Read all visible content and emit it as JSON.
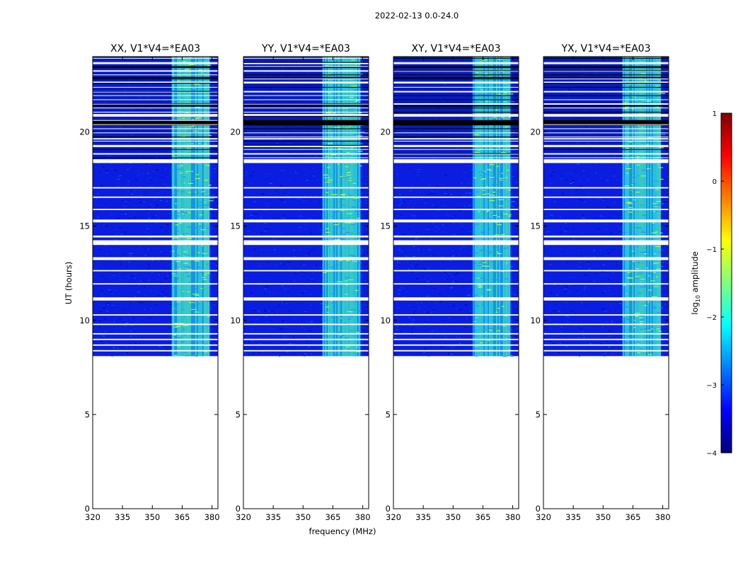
{
  "chart_data": {
    "type": "heatmap",
    "suptitle": "2022-02-13 0.0-24.0",
    "xlabel": "frequency (MHz)",
    "ylabel": "UT (hours)",
    "xlim": [
      320,
      383
    ],
    "ylim": [
      0,
      24
    ],
    "xticks": [
      320,
      335,
      350,
      365,
      380
    ],
    "yticks": [
      0,
      5,
      10,
      15,
      20
    ],
    "data_start_hour": 8.1,
    "data_end_hour": 24.0,
    "rfi_band_mhz": [
      360,
      379
    ],
    "panels": [
      {
        "title": "XX, V1*V4=*EA03",
        "rfi_band_mhz": [
          359.8,
          378.8
        ]
      },
      {
        "title": "YY, V1*V4=*EA03",
        "rfi_band_mhz": [
          359.8,
          378.8
        ]
      },
      {
        "title": "XY, V1*V4=*EA03",
        "rfi_band_mhz": [
          359.8,
          378.8
        ]
      },
      {
        "title": "YX, V1*V4=*EA03",
        "rfi_band_mhz": [
          359.8,
          378.8
        ]
      }
    ],
    "flagged_rows_ut_hours": [
      [
        8.35,
        8.42
      ],
      [
        8.65,
        8.72
      ],
      [
        8.95,
        9.02
      ],
      [
        9.25,
        9.32
      ],
      [
        9.75,
        9.82
      ],
      [
        10.25,
        10.32
      ],
      [
        11.05,
        11.22
      ],
      [
        11.9,
        11.97
      ],
      [
        12.6,
        12.67
      ],
      [
        13.2,
        13.35
      ],
      [
        14.0,
        14.25
      ],
      [
        14.4,
        14.5
      ],
      [
        15.2,
        15.35
      ],
      [
        15.85,
        15.92
      ],
      [
        16.5,
        16.57
      ],
      [
        17.0,
        17.07
      ],
      [
        18.35,
        18.55
      ],
      [
        18.8,
        18.87
      ],
      [
        19.2,
        19.27
      ],
      [
        19.6,
        19.67
      ],
      [
        20.85,
        20.95
      ],
      [
        21.45,
        21.52
      ],
      [
        22.1,
        22.17
      ],
      [
        22.6,
        22.67
      ],
      [
        23.2,
        23.27
      ],
      [
        23.6,
        23.67
      ]
    ],
    "zero_rows_ut_hours": [
      [
        20.35,
        20.6
      ],
      [
        21.35,
        21.42
      ],
      [
        22.85,
        22.92
      ],
      [
        23.4,
        23.45
      ]
    ],
    "colorbar": {
      "label": "log10 amplitude",
      "label_main": "log",
      "label_sub": "10",
      "label_rest": " amplitude",
      "min": -4,
      "max": 1,
      "ticks": [
        1,
        0,
        -1,
        -2,
        -3,
        -4
      ],
      "tick_labels": [
        "1",
        "0",
        "−1",
        "−2",
        "−3",
        "−4"
      ],
      "colormap": "jet",
      "colormap_stops": [
        "#00007f",
        "#0000ff",
        "#007fff",
        "#00ffff",
        "#7fff7f",
        "#ffff00",
        "#ff7f00",
        "#ff0000",
        "#7f0000"
      ]
    }
  }
}
